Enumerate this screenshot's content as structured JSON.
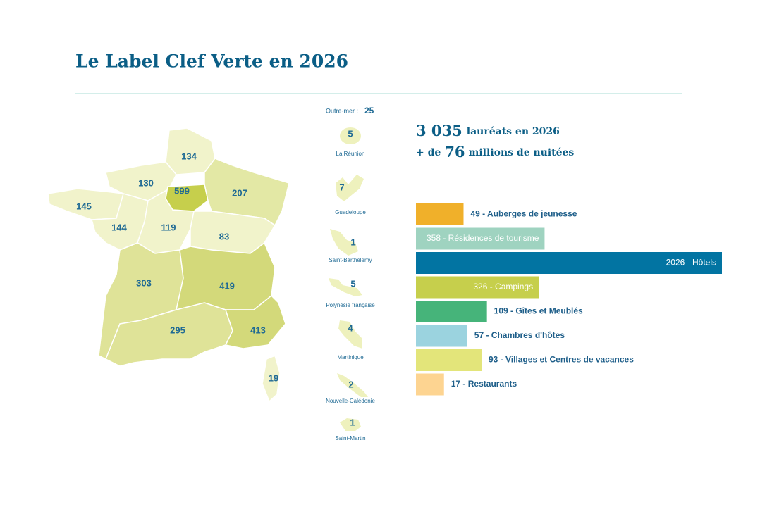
{
  "title": "Le Label Clef Verte en 2026",
  "map": {
    "regions": [
      134,
      130,
      599,
      207,
      145,
      144,
      119,
      83,
      303,
      419,
      295,
      413,
      19
    ],
    "overseas_label": "Outre-mer :",
    "overseas_total": 25,
    "territories": [
      {
        "name": "La Réunion",
        "value": 5
      },
      {
        "name": "Guadeloupe",
        "value": 7
      },
      {
        "name": "Saint-Barthélemy",
        "value": 1
      },
      {
        "name": "Polynésie française",
        "value": 5
      },
      {
        "name": "Martinique",
        "value": 4
      },
      {
        "name": "Nouvelle-Calédonie",
        "value": 2
      },
      {
        "name": "Saint-Martin",
        "value": 1
      }
    ]
  },
  "stats": {
    "laureates": {
      "number": "3 035",
      "text": "lauréats en 2026"
    },
    "nights": {
      "prefix": "+ de",
      "number": 76,
      "text": "millions de nuitées"
    }
  },
  "chart_data": {
    "type": "bar",
    "orientation": "horizontal",
    "values": [
      49,
      358,
      2026,
      326,
      109,
      57,
      93,
      17
    ],
    "value_labels": [
      "49 - Auberges de jeunesse",
      "358 - Résidences de tourisme",
      "2026 - Hôtels",
      "326 - Campings",
      "109 - Gîtes et Meublés",
      "57 - Chambres d'hôtes",
      "93 - Villages et Centres de vacances",
      "17 - Restaurants"
    ],
    "colors": [
      "#f0b02a",
      "#9fd3c0",
      "#0274a2",
      "#c6cf4c",
      "#46b47a",
      "#9bd3df",
      "#e3e57a",
      "#fdd491"
    ]
  }
}
